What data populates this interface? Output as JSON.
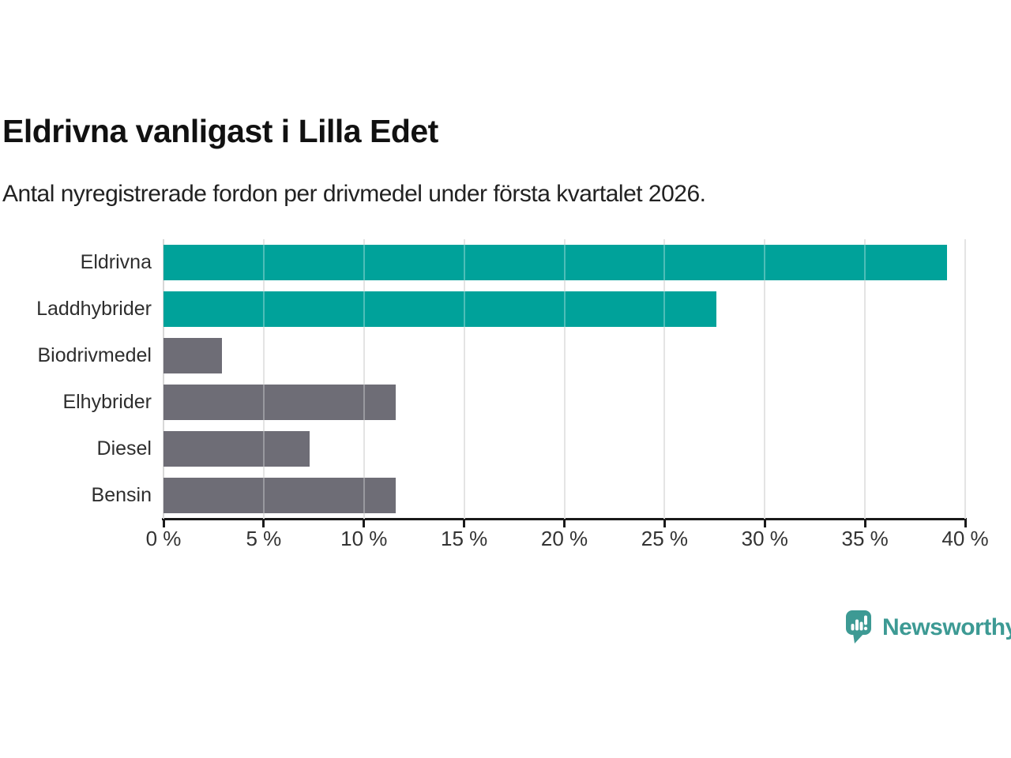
{
  "title": "Eldrivna vanligast i Lilla Edet",
  "subtitle": "Antal nyregistrerade fordon per drivmedel under första kvartalet 2026.",
  "chart_data": {
    "type": "bar",
    "orientation": "horizontal",
    "categories": [
      "Eldrivna",
      "Laddhybrider",
      "Biodrivmedel",
      "Elhybrider",
      "Diesel",
      "Bensin"
    ],
    "values": [
      39.1,
      27.6,
      2.9,
      11.6,
      7.3,
      11.6
    ],
    "unit": "%",
    "colors": [
      "#00a29a",
      "#00a29a",
      "#6e6d76",
      "#6e6d76",
      "#6e6d76",
      "#6e6d76"
    ],
    "highlight_color": "#00a29a",
    "default_color": "#6e6d76",
    "xlim": [
      0,
      40
    ],
    "x_tick_values": [
      0,
      5,
      10,
      15,
      20,
      25,
      30,
      35,
      40
    ],
    "x_tick_labels": [
      "0 %",
      "5 %",
      "10 %",
      "15 %",
      "20 %",
      "25 %",
      "30 %",
      "35 %",
      "40 %"
    ],
    "grid": true,
    "legend": false,
    "xlabel": "",
    "ylabel": ""
  },
  "branding": {
    "logo_text": "Newsworthy",
    "logo_color": "#3d9a94"
  },
  "style": {
    "background": "#ffffff",
    "text_color": "#2e2e2e",
    "axis_color": "#1a1a1a",
    "gridline_color": "#d8d8d8"
  }
}
